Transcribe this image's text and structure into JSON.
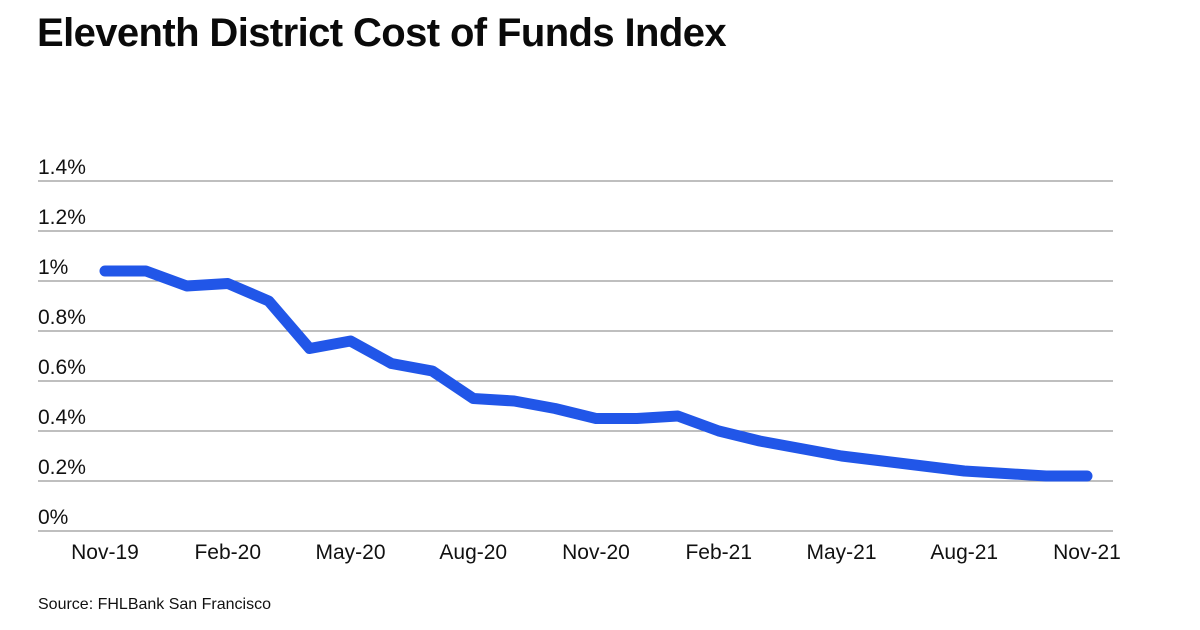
{
  "header": {
    "title": "Eleventh District Cost of Funds Index"
  },
  "footer": {
    "source": "Source: FHLBank San Francisco"
  },
  "chart_data": {
    "type": "line",
    "title": "Eleventh District Cost of Funds Index",
    "xlabel": "",
    "ylabel": "",
    "unit": "%",
    "x": [
      "Nov-19",
      "Dec-19",
      "Jan-20",
      "Feb-20",
      "Mar-20",
      "Apr-20",
      "May-20",
      "Jun-20",
      "Jul-20",
      "Aug-20",
      "Sep-20",
      "Oct-20",
      "Nov-20",
      "Dec-20",
      "Jan-21",
      "Feb-21",
      "Mar-21",
      "Apr-21",
      "May-21",
      "Jun-21",
      "Jul-21",
      "Aug-21",
      "Sep-21",
      "Oct-21",
      "Nov-21"
    ],
    "values": [
      1.04,
      1.04,
      0.98,
      0.99,
      0.92,
      0.73,
      0.76,
      0.67,
      0.64,
      0.53,
      0.52,
      0.49,
      0.45,
      0.45,
      0.46,
      0.4,
      0.36,
      0.33,
      0.3,
      0.28,
      0.26,
      0.24,
      0.23,
      0.22,
      0.22
    ],
    "series_name": "Eleventh District Cost of Funds Index",
    "x_tick_labels": [
      "Nov-19",
      "Feb-20",
      "May-20",
      "Aug-20",
      "Nov-20",
      "Feb-21",
      "May-21",
      "Aug-21",
      "Nov-21"
    ],
    "y_tick_labels": [
      "1.4%",
      "1.2%",
      "1%",
      "0.8%",
      "0.6%",
      "0.4%",
      "0.2%",
      "0%"
    ],
    "y_tick_values": [
      1.4,
      1.2,
      1.0,
      0.8,
      0.6,
      0.4,
      0.2,
      0
    ],
    "ylim": [
      0,
      1.4
    ],
    "grid": "horizontal",
    "legend": "none",
    "colors": {
      "line": "#2156e8",
      "gridline": "#999999",
      "tick_text": "#111111",
      "title_text": "#0a0a0a",
      "background": "#ffffff"
    }
  }
}
